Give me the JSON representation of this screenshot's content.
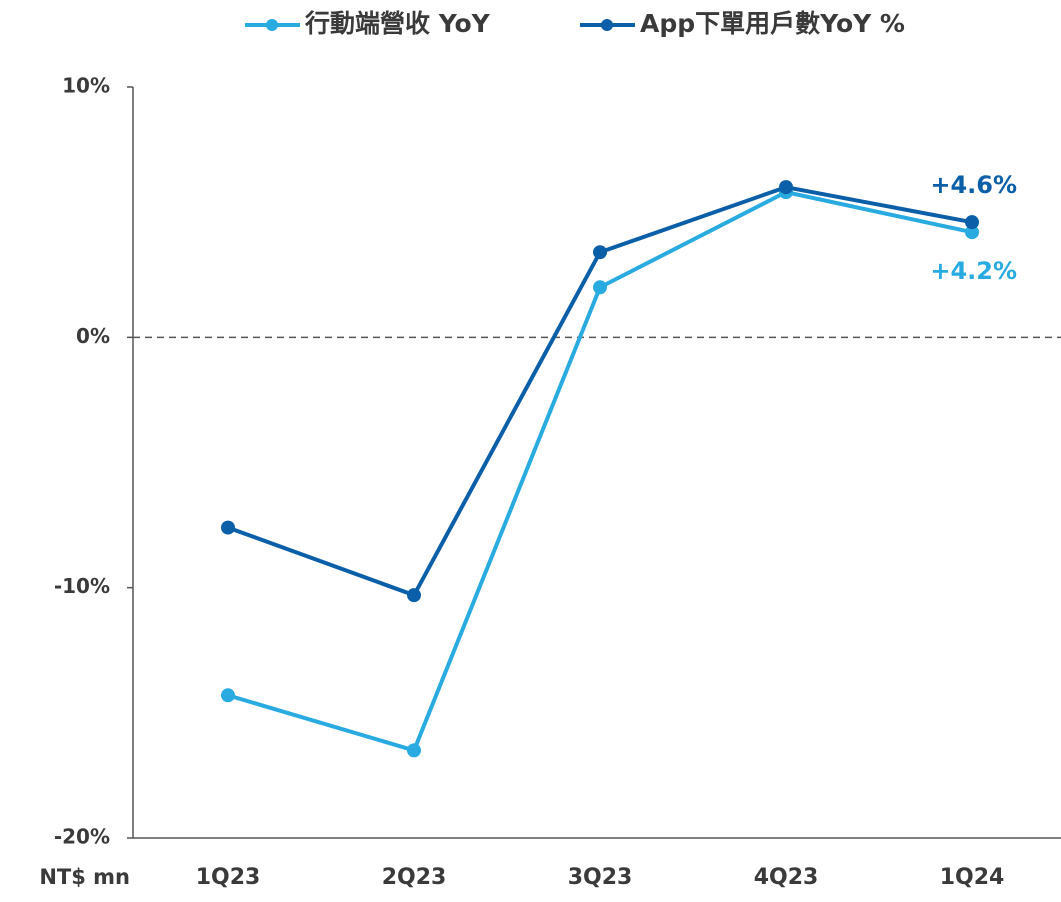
{
  "chart_data": {
    "type": "line",
    "categories": [
      "1Q23",
      "2Q23",
      "3Q23",
      "4Q23",
      "1Q24"
    ],
    "series": [
      {
        "name": "行動端營收 YoY",
        "color": "#29abe2",
        "values": [
          -14.3,
          -16.5,
          2.0,
          5.8,
          4.2
        ],
        "value_labels": [
          null,
          null,
          null,
          null,
          "+4.2%"
        ]
      },
      {
        "name": "App下單用戶數YoY %",
        "color": "#0b5ea8",
        "values": [
          -7.6,
          -10.3,
          3.4,
          6.0,
          4.6
        ],
        "value_labels": [
          null,
          null,
          null,
          null,
          "+4.6%"
        ]
      }
    ],
    "ylim": [
      -20,
      10
    ],
    "yticks": [
      {
        "value": 10,
        "label": "10%"
      },
      {
        "value": 0,
        "label": "0%"
      },
      {
        "value": -10,
        "label": "-10%"
      },
      {
        "value": -20,
        "label": "-20%"
      }
    ],
    "zero_line": true,
    "legend": "top",
    "annotation": "NT$ mn"
  }
}
